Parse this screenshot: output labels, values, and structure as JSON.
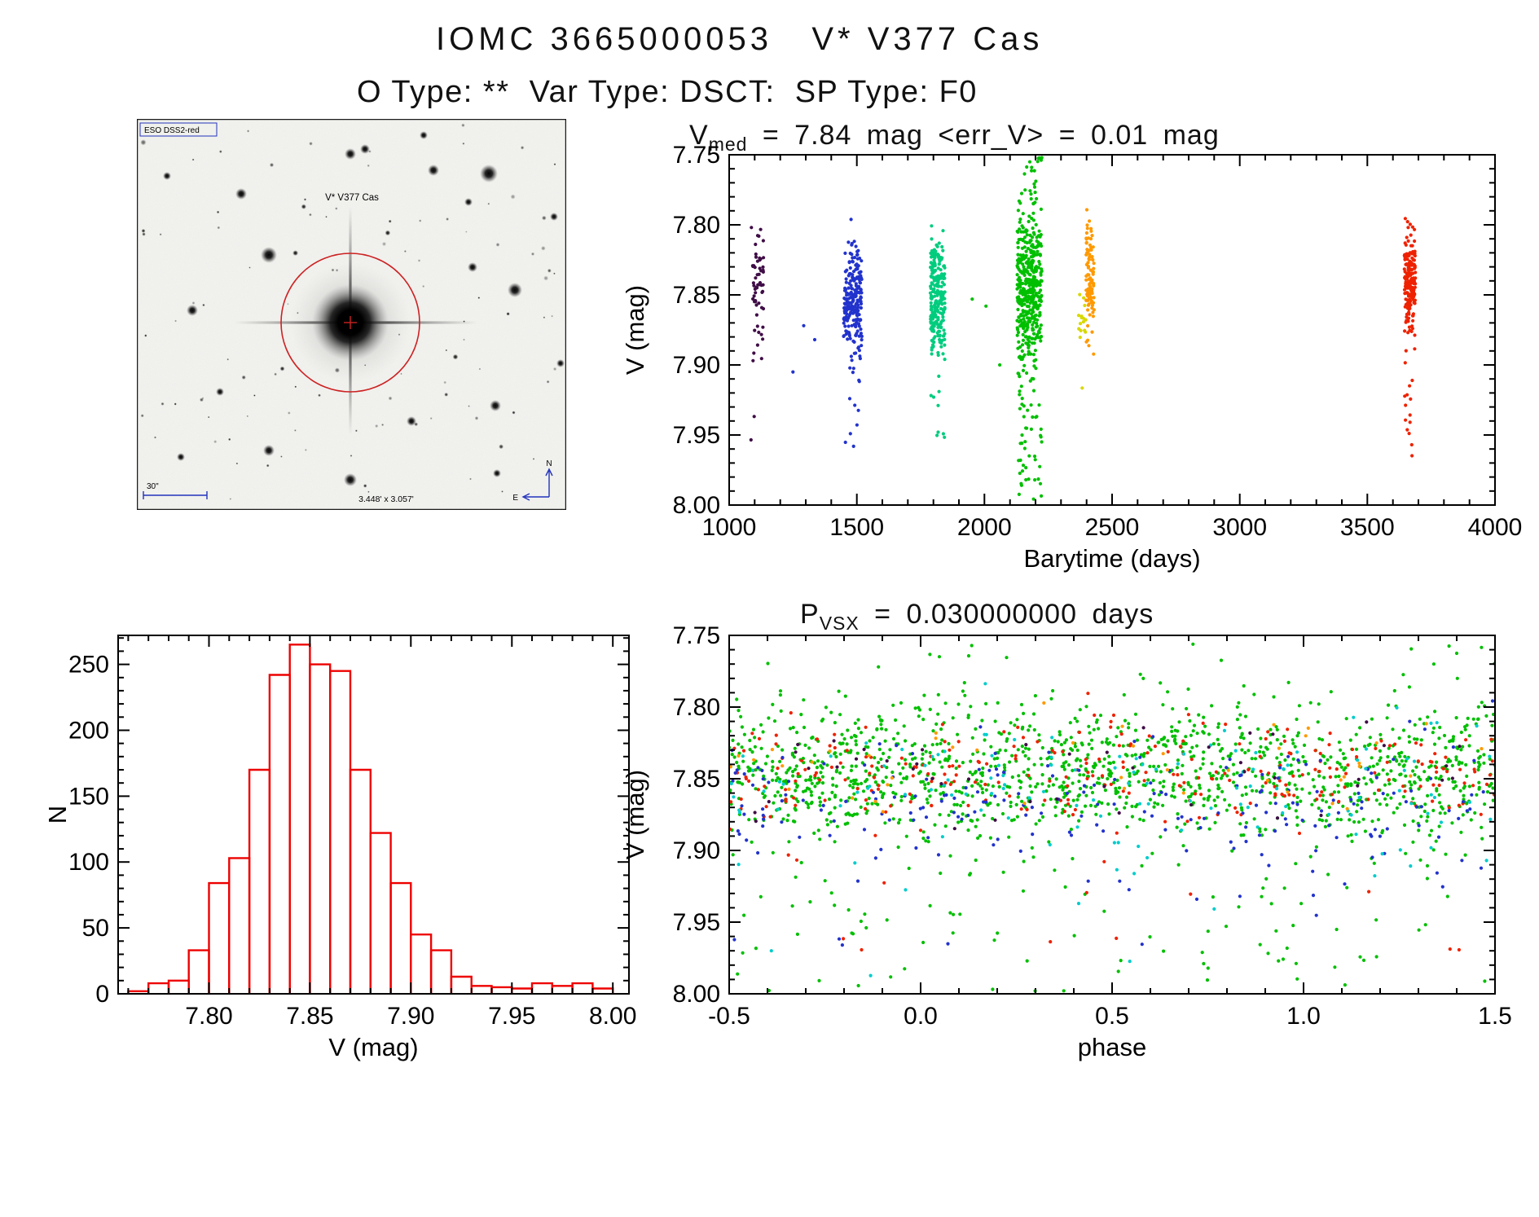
{
  "page": {
    "title_line1": "IOMC 3665000053   V* V377 Cas",
    "title_line2": "O Type: **  Var Type: DSCT:  SP Type: F0"
  },
  "finder": {
    "survey_label": "ESO DSS2-red",
    "star_label": "V* V377 Cas",
    "scale_label": "30\"",
    "fov_label": "3.448' x 3.057'",
    "compass_north": "N",
    "compass_east": "E",
    "annotation_color": "#cc2222",
    "caption_color": "#2233bb",
    "seed": 5,
    "faint_star_count": 110,
    "prominent_stars": [
      [
        432,
        67,
        11
      ],
      [
        364,
        63,
        7
      ],
      [
        262,
        43,
        7
      ],
      [
        280,
        37,
        6
      ],
      [
        128,
        92,
        7
      ],
      [
        162,
        167,
        10
      ],
      [
        37,
        70,
        5
      ],
      [
        68,
        235,
        7
      ],
      [
        407,
        102,
        5
      ],
      [
        412,
        182,
        6
      ],
      [
        464,
        210,
        9
      ],
      [
        440,
        352,
        7
      ],
      [
        337,
        371,
        6
      ],
      [
        162,
        407,
        7
      ],
      [
        262,
        443,
        8
      ],
      [
        520,
        300,
        5
      ],
      [
        54,
        415,
        5
      ],
      [
        442,
        435,
        5
      ],
      [
        102,
        335,
        5
      ],
      [
        352,
        20,
        5
      ],
      [
        512,
        120,
        5
      ]
    ]
  },
  "chart_data": [
    {
      "id": "lightcurve",
      "type": "scatter",
      "title": {
        "pre": "V",
        "sub": "med",
        "post": " = 7.84 mag <err_V> = 0.01 mag"
      },
      "v_med_mag": 7.84,
      "err_v_mag": 0.01,
      "xlabel": "Barytime (days)",
      "ylabel": "V (mag)",
      "x_left": 1000,
      "x_right": 4000,
      "y_top": 7.75,
      "y_bottom": 8.0,
      "xticks": [
        1000,
        1500,
        2000,
        2500,
        3000,
        3500,
        4000
      ],
      "xtick_labels": [
        "1000",
        "1500",
        "2000",
        "2500",
        "3000",
        "3500",
        "4000"
      ],
      "yticks": [
        7.75,
        7.8,
        7.85,
        7.9,
        7.95,
        8.0
      ],
      "ytick_labels": [
        "7.75",
        "7.80",
        "7.85",
        "7.90",
        "7.95",
        "8.00"
      ],
      "x_minor": 100,
      "y_minor": 0.01,
      "seed": 7,
      "clusters": [
        {
          "name": "epoch-1-purple",
          "color": "#3f0d46",
          "x_range": [
            1085,
            1135
          ],
          "n": 60,
          "y_mean": 7.845,
          "y_sigma": 0.02,
          "tails": [
            {
              "frac": 0.07,
              "range": [
                7.89,
                7.955
              ]
            }
          ]
        },
        {
          "name": "epoch-2-blue",
          "color": "#2233cc",
          "x_range": [
            1448,
            1520
          ],
          "n": 240,
          "y_mean": 7.855,
          "y_sigma": 0.021,
          "tails": [
            {
              "frac": 0.04,
              "range": [
                7.9,
                7.96
              ]
            }
          ],
          "extra": [
            [
              1292,
              7.872
            ],
            [
              1335,
              7.882
            ],
            [
              1250,
              7.905
            ]
          ]
        },
        {
          "name": "epoch-3-springgreen",
          "color": "#00cc7e",
          "x_range": [
            1788,
            1845
          ],
          "n": 240,
          "y_mean": 7.85,
          "y_sigma": 0.022,
          "tails": [
            {
              "frac": 0.05,
              "range": [
                7.905,
                7.96
              ]
            }
          ]
        },
        {
          "name": "epoch-4-green",
          "color": "#00bf00",
          "x_range": [
            2128,
            2225
          ],
          "n": 500,
          "y_mean": 7.845,
          "y_sigma": 0.027,
          "tails": [
            {
              "frac": 0.08,
              "range": [
                7.905,
                8.0
              ]
            },
            {
              "frac": 0.035,
              "range": [
                7.743,
                7.79
              ]
            }
          ],
          "extra": [
            [
              1952,
              7.853
            ],
            [
              2006,
              7.858
            ],
            [
              2060,
              7.9
            ]
          ]
        },
        {
          "name": "epoch-5-yellow",
          "color": "#d8d800",
          "x_range": [
            2368,
            2398
          ],
          "n": 16,
          "y_mean": 7.873,
          "y_sigma": 0.012
        },
        {
          "name": "epoch-6-orange",
          "color": "#ff9900",
          "x_range": [
            2398,
            2430
          ],
          "n": 100,
          "y_mean": 7.838,
          "y_sigma": 0.02
        },
        {
          "name": "epoch-7-red",
          "color": "#ee2200",
          "x_range": [
            3645,
            3688
          ],
          "n": 200,
          "y_mean": 7.843,
          "y_sigma": 0.017,
          "tails": [
            {
              "frac": 0.06,
              "range": [
                7.91,
                7.97
              ]
            }
          ]
        }
      ]
    },
    {
      "id": "histogram",
      "type": "histogram",
      "xlabel": "V (mag)",
      "ylabel": "N",
      "x_left": 7.755,
      "x_right": 8.008,
      "y_top": 272,
      "y_bottom": 0,
      "xticks": [
        7.8,
        7.85,
        7.9,
        7.95,
        8.0
      ],
      "xtick_labels": [
        "7.80",
        "7.85",
        "7.90",
        "7.95",
        "8.00"
      ],
      "yticks": [
        0,
        50,
        100,
        150,
        200,
        250
      ],
      "ytick_labels": [
        "0",
        "50",
        "100",
        "150",
        "200",
        "250"
      ],
      "x_minor": 0.01,
      "y_minor": 10,
      "bar_color": "#ee0000",
      "bin_start": 7.76,
      "bin_width": 0.01,
      "counts": [
        2,
        8,
        10,
        33,
        84,
        103,
        170,
        242,
        265,
        250,
        245,
        170,
        122,
        84,
        45,
        33,
        13,
        6,
        5,
        4,
        8,
        6,
        8,
        4
      ]
    },
    {
      "id": "phase",
      "type": "scatter",
      "title": {
        "pre": "P",
        "sub": "VSX",
        "post": " = 0.030000000 days"
      },
      "period_days": 0.03,
      "xlabel": "phase",
      "ylabel": "V (mag)",
      "x_left": -0.5,
      "x_right": 1.5,
      "y_top": 7.75,
      "y_bottom": 8.0,
      "xticks": [
        -0.5,
        0.0,
        0.5,
        1.0,
        1.5
      ],
      "xtick_labels": [
        "-0.5",
        "0.0",
        "0.5",
        "1.0",
        "1.5"
      ],
      "yticks": [
        7.75,
        7.8,
        7.85,
        7.9,
        7.95,
        8.0
      ],
      "ytick_labels": [
        "7.75",
        "7.80",
        "7.85",
        "7.90",
        "7.95",
        "8.00"
      ],
      "x_minor": 0.1,
      "y_minor": 0.01,
      "seed": 11,
      "clusters": [
        {
          "name": "series-green",
          "color": "#00bf00",
          "x_range": [
            -0.5,
            1.5
          ],
          "n": 1500,
          "y_mean": 7.845,
          "y_sigma": 0.024,
          "tails": [
            {
              "frac": 0.05,
              "range": [
                7.9,
                8.0
              ]
            },
            {
              "frac": 0.012,
              "range": [
                7.752,
                7.79
              ]
            }
          ]
        },
        {
          "name": "series-red",
          "color": "#ee2200",
          "x_range": [
            -0.5,
            1.5
          ],
          "n": 280,
          "y_mean": 7.848,
          "y_sigma": 0.02,
          "tails": [
            {
              "frac": 0.05,
              "range": [
                7.9,
                7.98
              ]
            }
          ]
        },
        {
          "name": "series-blue",
          "color": "#2233cc",
          "x_range": [
            -0.5,
            1.5
          ],
          "n": 220,
          "y_mean": 7.868,
          "y_sigma": 0.022,
          "tails": [
            {
              "frac": 0.07,
              "range": [
                7.9,
                7.985
              ]
            }
          ]
        },
        {
          "name": "series-cyan",
          "color": "#00cccc",
          "x_range": [
            -0.5,
            1.5
          ],
          "n": 130,
          "y_mean": 7.858,
          "y_sigma": 0.026,
          "tails": [
            {
              "frac": 0.1,
              "range": [
                7.9,
                7.99
              ]
            }
          ]
        },
        {
          "name": "series-purple",
          "color": "#3f0d46",
          "x_range": [
            -0.5,
            1.5
          ],
          "n": 45,
          "y_mean": 7.85,
          "y_sigma": 0.02
        },
        {
          "name": "series-orange",
          "color": "#ff9900",
          "x_range": [
            -0.5,
            1.5
          ],
          "n": 45,
          "y_mean": 7.84,
          "y_sigma": 0.018
        }
      ]
    }
  ]
}
